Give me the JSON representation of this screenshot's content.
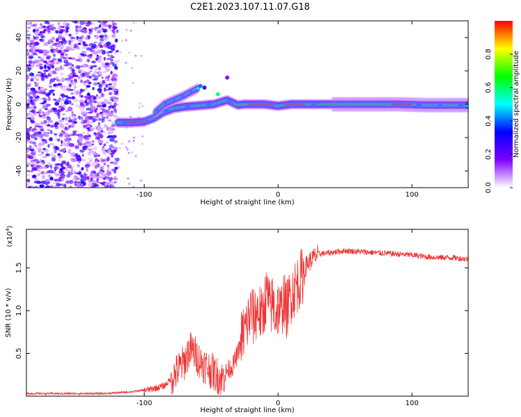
{
  "title": "C2E1.2023.107.11.07.G18",
  "chart_data": [
    {
      "type": "heatmap",
      "name": "spectrogram",
      "xlabel": "Height of straight line (km)",
      "ylabel": "Frequency (Hz)",
      "xlim": [
        -188,
        142
      ],
      "ylim": [
        -50,
        50
      ],
      "xticks": [
        -100,
        0,
        100
      ],
      "yticks": [
        -40,
        -20,
        0,
        20,
        40
      ],
      "grid": false,
      "noise_region_x": [
        -188,
        -120
      ],
      "ridge": {
        "x": [
          -120,
          -110,
          -100,
          -92,
          -85,
          -78,
          -70,
          -62,
          -55,
          -48,
          -42,
          -38,
          -34,
          -30,
          -25,
          -20,
          -10,
          0,
          10,
          20,
          35,
          50,
          70,
          90,
          110,
          130,
          142
        ],
        "y": [
          -11,
          -11,
          -10.5,
          -8,
          -4.5,
          -2.5,
          -1.5,
          -1,
          -0.5,
          0,
          1.5,
          2.5,
          1,
          -0.5,
          0,
          0,
          0,
          -1,
          0,
          0,
          0,
          0,
          0,
          0,
          -0.5,
          -0.5,
          -0.5
        ]
      },
      "upper_branch": {
        "x": [
          -92,
          -85,
          -78,
          -72,
          -66,
          -60
        ],
        "y": [
          -5,
          0,
          2.5,
          4.5,
          7,
          9.5
        ]
      },
      "colorbar": {
        "label": "Normalized spectral amplitude",
        "range": [
          0,
          1
        ],
        "ticks": [
          0.0,
          0.2,
          0.4,
          0.6,
          0.8
        ],
        "tick_labels": [
          "0.0",
          "0.2",
          "0.4",
          "0.6",
          "0.8"
        ],
        "colors": [
          "#ffffff",
          "#8000ff",
          "#0000ff",
          "#00ffff",
          "#00ff00",
          "#ffff00",
          "#ff0000"
        ]
      }
    },
    {
      "type": "line",
      "name": "snr",
      "xlabel": "Height of straight line (km)",
      "ylabel": "SNR (10 * v/v)",
      "y_multiplier": "(x10",
      "y_exponent": "4",
      "y_multiplier_close": ")",
      "xlim": [
        -188,
        142
      ],
      "ylim": [
        0,
        1.95
      ],
      "xticks": [
        -100,
        0,
        100
      ],
      "yticks": [
        0.5,
        1.0,
        1.5
      ],
      "ytick_labels": [
        "0.5",
        "1.0",
        "1.5"
      ],
      "color": "#ee3333",
      "grid": false,
      "series": [
        {
          "x": [
            -188,
            -170,
            -150,
            -130,
            -110,
            -100,
            -95,
            -90,
            -85,
            -80,
            -75,
            -70,
            -66,
            -62,
            -58,
            -54,
            -50,
            -46,
            -42,
            -38,
            -34,
            -30,
            -27,
            -24,
            -22,
            -20,
            -18,
            -16,
            -14,
            -12,
            -10,
            -8,
            -6,
            -4,
            -2,
            0,
            2,
            4,
            6,
            8,
            10,
            12,
            14,
            16,
            18,
            20,
            22,
            25,
            30,
            40,
            50,
            60,
            70,
            80,
            90,
            100,
            110,
            120,
            130,
            142
          ],
          "y": [
            0.03,
            0.03,
            0.03,
            0.03,
            0.05,
            0.07,
            0.08,
            0.1,
            0.12,
            0.2,
            0.3,
            0.4,
            0.55,
            0.5,
            0.4,
            0.35,
            0.3,
            0.25,
            0.2,
            0.3,
            0.35,
            0.5,
            0.7,
            0.8,
            0.9,
            1.0,
            0.9,
            1.0,
            1.0,
            0.9,
            1.1,
            1.2,
            1.0,
            1.1,
            0.95,
            1.05,
            0.95,
            1.15,
            1.0,
            1.1,
            1.2,
            1.25,
            1.3,
            1.35,
            1.4,
            1.5,
            1.55,
            1.6,
            1.66,
            1.68,
            1.7,
            1.69,
            1.68,
            1.67,
            1.66,
            1.65,
            1.63,
            1.62,
            1.62,
            1.6
          ]
        }
      ]
    }
  ]
}
